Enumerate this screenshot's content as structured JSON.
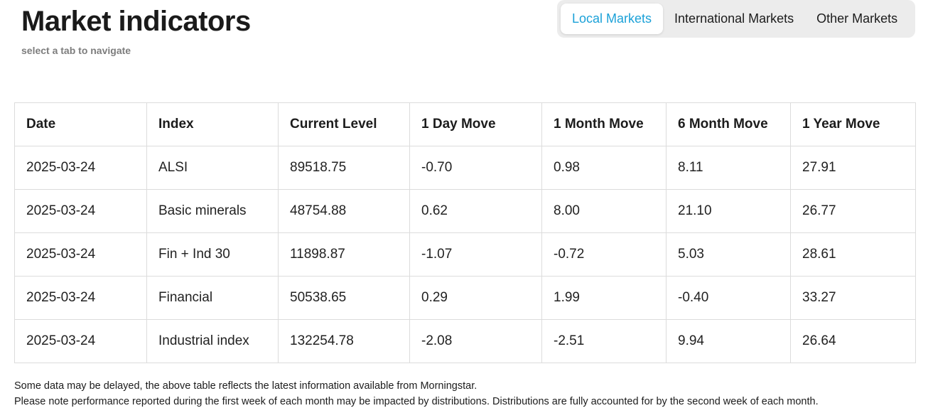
{
  "header": {
    "title": "Market indicators",
    "subtitle": "select a tab to navigate"
  },
  "tabs": [
    {
      "label": "Local Markets",
      "active": true
    },
    {
      "label": "International Markets",
      "active": false
    },
    {
      "label": "Other Markets",
      "active": false
    }
  ],
  "colors": {
    "active_tab": "#1ba1d8",
    "tab_bar_bg": "#ececec",
    "border": "#dcdcdc"
  },
  "table": {
    "headers": [
      "Date",
      "Index",
      "Current Level",
      "1 Day Move",
      "1 Month Move",
      "6 Month Move",
      "1 Year Move"
    ],
    "rows": [
      [
        "2025-03-24",
        "ALSI",
        "89518.75",
        "-0.70",
        "0.98",
        "8.11",
        "27.91"
      ],
      [
        "2025-03-24",
        "Basic minerals",
        "48754.88",
        "0.62",
        "8.00",
        "21.10",
        "26.77"
      ],
      [
        "2025-03-24",
        "Fin + Ind 30",
        "11898.87",
        "-1.07",
        "-0.72",
        "5.03",
        "28.61"
      ],
      [
        "2025-03-24",
        "Financial",
        "50538.65",
        "0.29",
        "1.99",
        "-0.40",
        "33.27"
      ],
      [
        "2025-03-24",
        "Industrial index",
        "132254.78",
        "-2.08",
        "-2.51",
        "9.94",
        "26.64"
      ]
    ]
  },
  "notes": [
    "Some data may be delayed, the above table reflects the latest information available from Morningstar.",
    "Please note performance reported during the first week of each month may be impacted by distributions. Distributions are fully accounted for by the second week of each month."
  ]
}
